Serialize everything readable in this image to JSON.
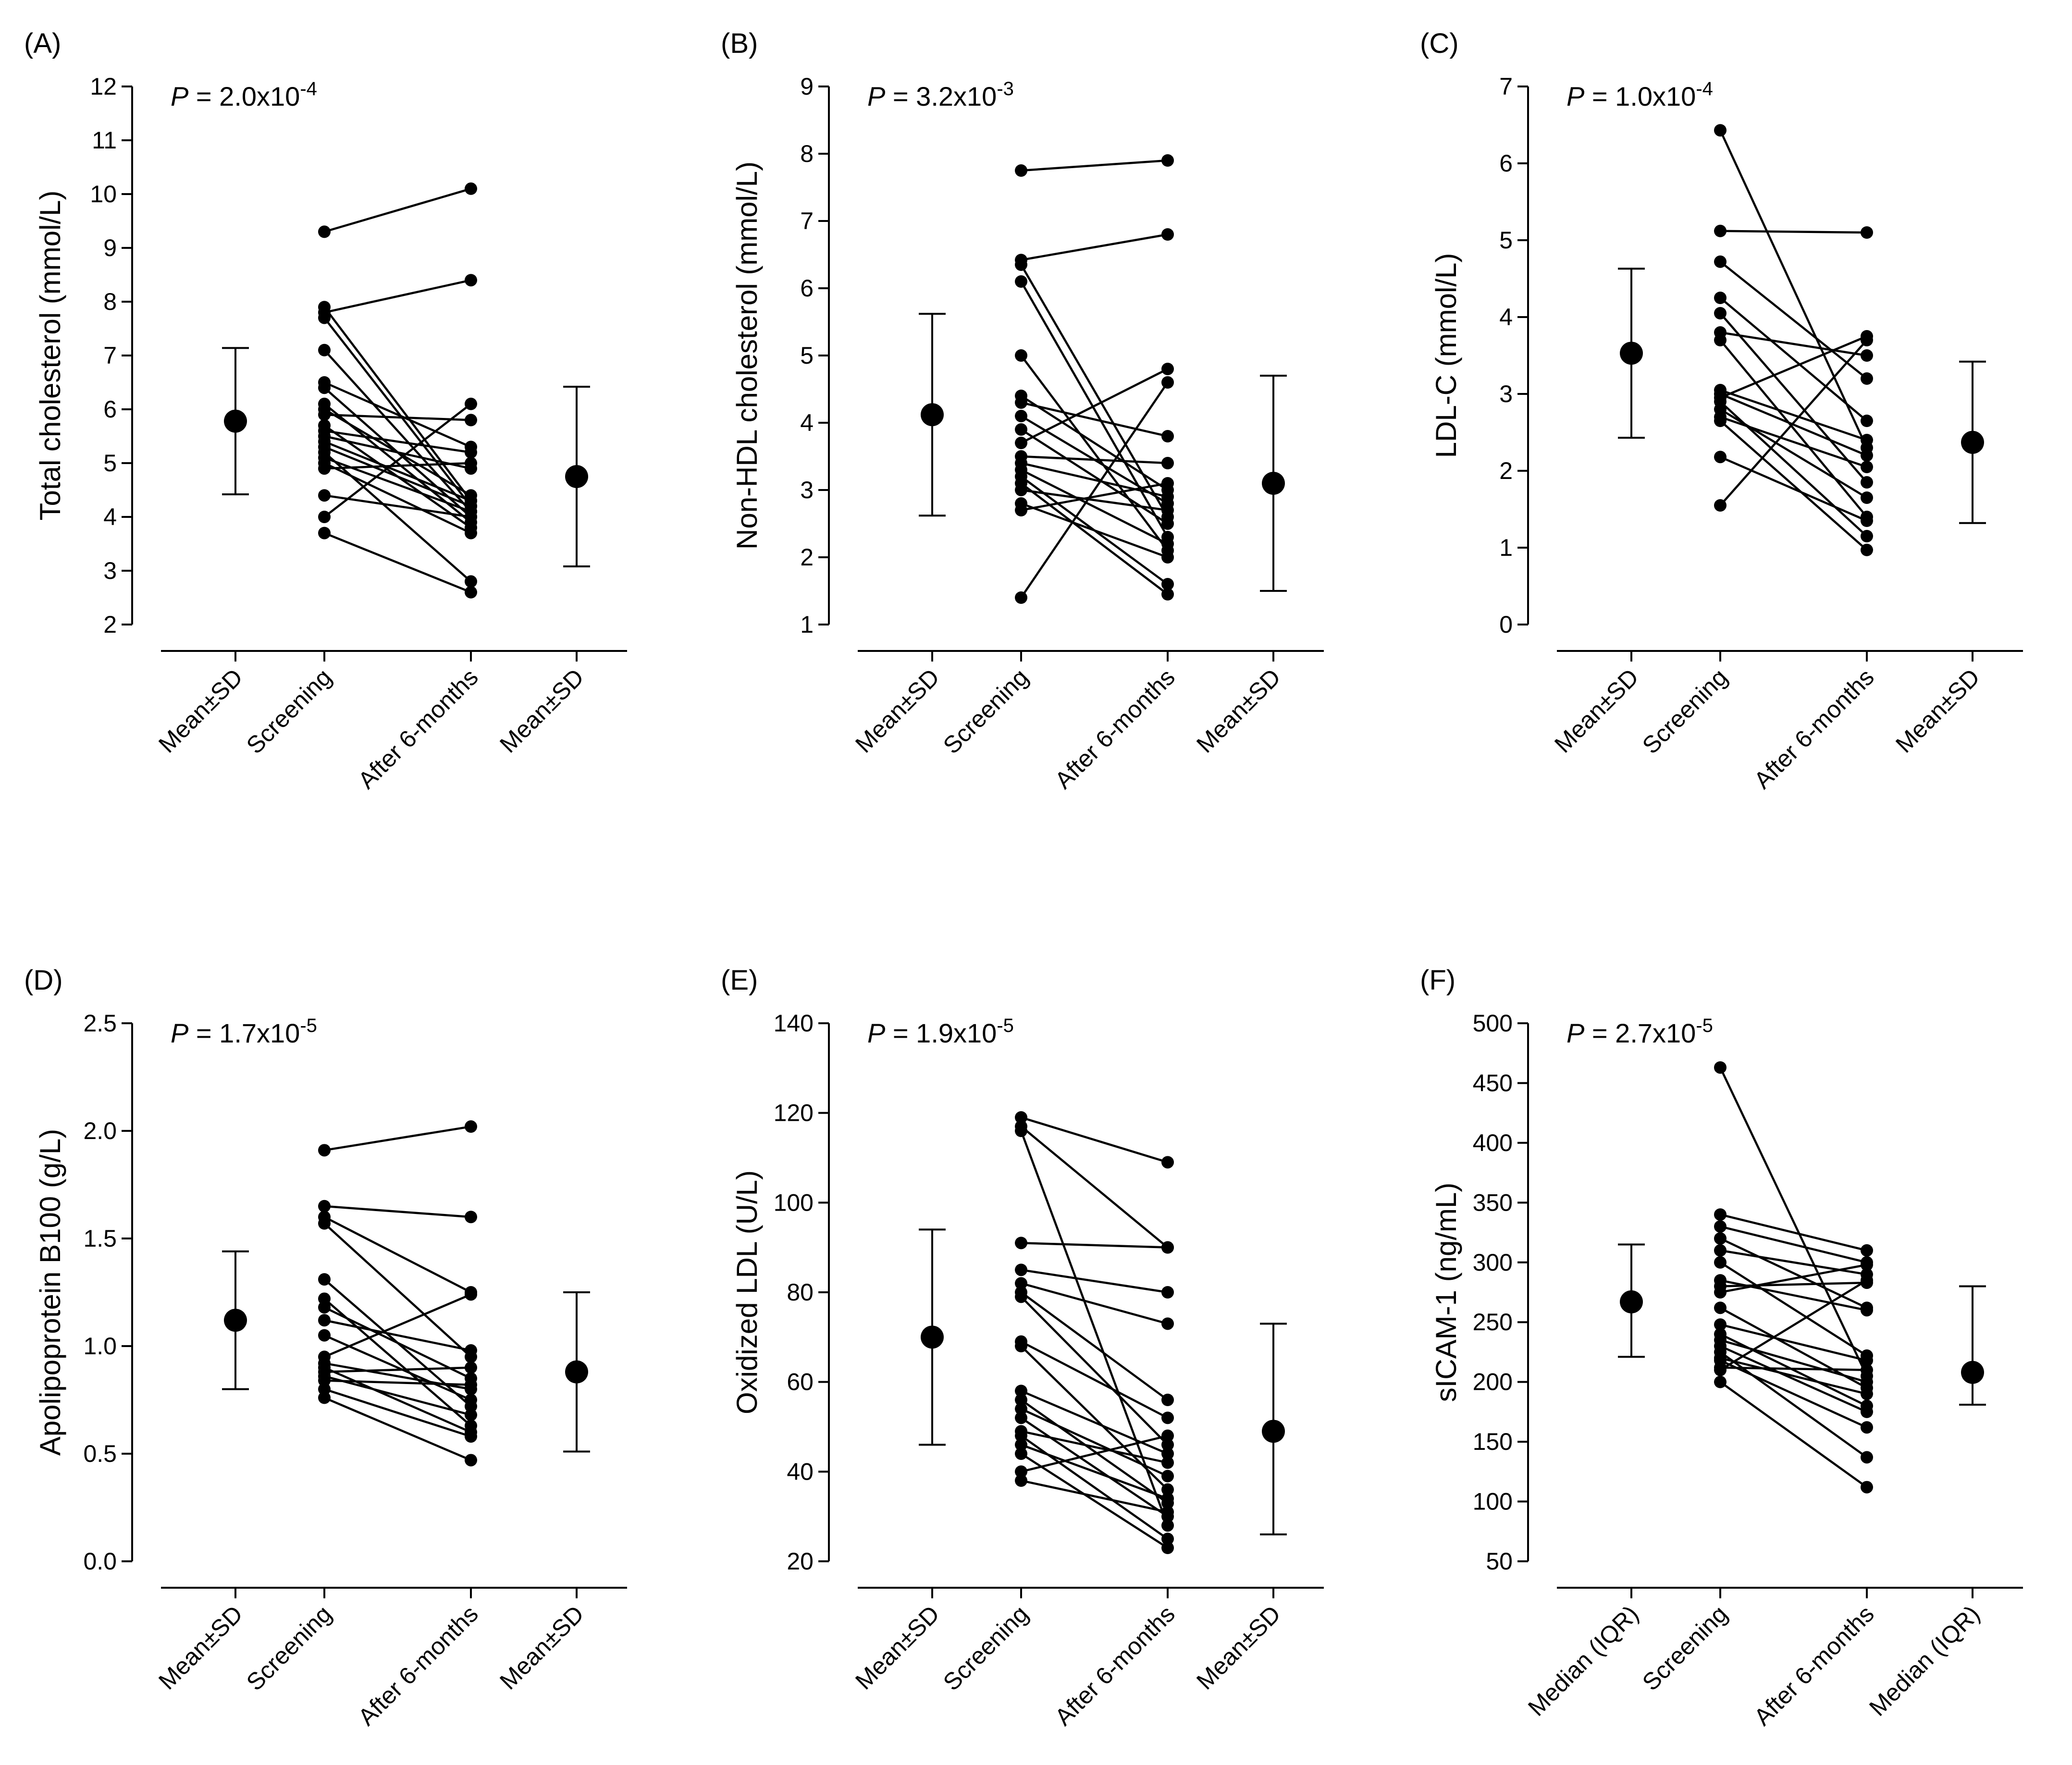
{
  "chart_data": [
    {
      "type": "line",
      "panel_label": "(A)",
      "p_prefix": "P",
      "p_text": " = 2.0x10",
      "p_exp": "-4",
      "ylabel": "Total cholesterol (mmol/L)",
      "ylim": [
        2,
        12
      ],
      "yticks": [
        2,
        3,
        4,
        5,
        6,
        7,
        8,
        9,
        10,
        11,
        12
      ],
      "categories": [
        "Mean±SD",
        "Screening",
        "After 6-months",
        "Mean±SD"
      ],
      "summary_before": {
        "center": 5.78,
        "low": 4.42,
        "high": 7.14
      },
      "summary_after": {
        "center": 4.75,
        "low": 3.08,
        "high": 6.42
      },
      "pairs": [
        [
          9.3,
          10.1
        ],
        [
          7.9,
          4.3
        ],
        [
          7.8,
          8.4
        ],
        [
          7.7,
          4.2
        ],
        [
          7.1,
          4.1
        ],
        [
          6.5,
          5.3
        ],
        [
          6.4,
          4.0
        ],
        [
          6.1,
          3.9
        ],
        [
          6.0,
          4.4
        ],
        [
          5.9,
          5.8
        ],
        [
          5.7,
          3.8
        ],
        [
          5.6,
          5.2
        ],
        [
          5.5,
          4.9
        ],
        [
          5.4,
          4.3
        ],
        [
          5.3,
          4.2
        ],
        [
          5.2,
          2.8
        ],
        [
          5.1,
          4.1
        ],
        [
          5.0,
          3.7
        ],
        [
          4.9,
          5.0
        ],
        [
          4.4,
          4.0
        ],
        [
          4.0,
          6.1
        ],
        [
          3.7,
          2.6
        ]
      ]
    },
    {
      "type": "line",
      "panel_label": "(B)",
      "p_prefix": "P",
      "p_text": " = 3.2x10",
      "p_exp": "-3",
      "ylabel": "Non-HDL cholesterol (mmol/L)",
      "ylim": [
        1,
        9
      ],
      "yticks": [
        1,
        2,
        3,
        4,
        5,
        6,
        7,
        8,
        9
      ],
      "categories": [
        "Mean±SD",
        "Screening",
        "After 6-months",
        "Mean±SD"
      ],
      "summary_before": {
        "center": 4.12,
        "low": 2.62,
        "high": 5.62
      },
      "summary_after": {
        "center": 3.1,
        "low": 1.5,
        "high": 4.7
      },
      "pairs": [
        [
          7.75,
          7.9
        ],
        [
          6.42,
          6.8
        ],
        [
          6.35,
          2.6
        ],
        [
          6.1,
          2.3
        ],
        [
          5.0,
          2.1
        ],
        [
          4.4,
          3.0
        ],
        [
          4.3,
          3.8
        ],
        [
          4.1,
          2.8
        ],
        [
          3.9,
          2.5
        ],
        [
          3.7,
          4.8
        ],
        [
          3.5,
          3.4
        ],
        [
          3.4,
          2.9
        ],
        [
          3.3,
          2.2
        ],
        [
          3.2,
          1.6
        ],
        [
          3.1,
          1.45
        ],
        [
          3.0,
          2.7
        ],
        [
          2.8,
          2.0
        ],
        [
          2.7,
          3.1
        ],
        [
          1.4,
          4.6
        ]
      ]
    },
    {
      "type": "line",
      "panel_label": "(C)",
      "p_prefix": "P",
      "p_text": " = 1.0x10",
      "p_exp": "-4",
      "ylabel": "LDL-C (mmol/L)",
      "ylim": [
        0,
        7
      ],
      "yticks": [
        0,
        1,
        2,
        3,
        4,
        5,
        6,
        7
      ],
      "categories": [
        "Mean±SD",
        "Screening",
        "After 6-months",
        "Mean±SD"
      ],
      "summary_before": {
        "center": 3.53,
        "low": 2.43,
        "high": 4.63
      },
      "summary_after": {
        "center": 2.37,
        "low": 1.32,
        "high": 3.42
      },
      "pairs": [
        [
          6.43,
          2.3
        ],
        [
          5.12,
          5.1
        ],
        [
          4.72,
          3.2
        ],
        [
          4.25,
          2.65
        ],
        [
          4.05,
          1.85
        ],
        [
          3.8,
          3.5
        ],
        [
          3.7,
          1.4
        ],
        [
          3.05,
          2.4
        ],
        [
          3.0,
          2.2
        ],
        [
          2.95,
          3.75
        ],
        [
          2.9,
          1.15
        ],
        [
          2.8,
          1.65
        ],
        [
          2.65,
          0.97
        ],
        [
          2.7,
          2.05
        ],
        [
          2.18,
          1.35
        ],
        [
          1.55,
          3.7
        ]
      ]
    },
    {
      "type": "line",
      "panel_label": "(D)",
      "p_prefix": "P",
      "p_text": " = 1.7x10",
      "p_exp": "-5",
      "ylabel": "Apolipoprotein B100 (g/L)",
      "ylim": [
        0.0,
        2.5
      ],
      "yticks": [
        0.0,
        0.5,
        1.0,
        1.5,
        2.0,
        2.5
      ],
      "categories": [
        "Mean±SD",
        "Screening",
        "After 6-months",
        "Mean±SD"
      ],
      "summary_before": {
        "center": 1.12,
        "low": 0.8,
        "high": 1.44
      },
      "summary_after": {
        "center": 0.88,
        "low": 0.51,
        "high": 1.25
      },
      "pairs": [
        [
          1.91,
          2.02
        ],
        [
          1.65,
          1.6
        ],
        [
          1.6,
          1.25
        ],
        [
          1.57,
          0.95
        ],
        [
          1.31,
          0.72
        ],
        [
          1.22,
          0.63
        ],
        [
          1.18,
          0.85
        ],
        [
          1.12,
          0.98
        ],
        [
          1.05,
          0.75
        ],
        [
          0.95,
          1.24
        ],
        [
          0.92,
          0.8
        ],
        [
          0.9,
          0.6
        ],
        [
          0.88,
          0.9
        ],
        [
          0.86,
          0.68
        ],
        [
          0.84,
          0.82
        ],
        [
          0.8,
          0.58
        ],
        [
          0.76,
          0.47
        ]
      ]
    },
    {
      "type": "line",
      "panel_label": "(E)",
      "p_prefix": "P",
      "p_text": " = 1.9x10",
      "p_exp": "-5",
      "ylabel": "Oxidized LDL (U/L)",
      "ylim": [
        20,
        140
      ],
      "yticks": [
        20,
        40,
        60,
        80,
        100,
        120,
        140
      ],
      "categories": [
        "Mean±SD",
        "Screening",
        "After 6-months",
        "Mean±SD"
      ],
      "summary_before": {
        "center": 70,
        "low": 46,
        "high": 94
      },
      "summary_after": {
        "center": 49,
        "low": 26,
        "high": 73
      },
      "pairs": [
        [
          119,
          109
        ],
        [
          117,
          90
        ],
        [
          116,
          28
        ],
        [
          91,
          90
        ],
        [
          85,
          80
        ],
        [
          82,
          73
        ],
        [
          80,
          56
        ],
        [
          79,
          46
        ],
        [
          69,
          52
        ],
        [
          68,
          36
        ],
        [
          58,
          44
        ],
        [
          56,
          33
        ],
        [
          54,
          39
        ],
        [
          52,
          30
        ],
        [
          49,
          42
        ],
        [
          48,
          25
        ],
        [
          46,
          34
        ],
        [
          44,
          23
        ],
        [
          40,
          48
        ],
        [
          38,
          31
        ]
      ]
    },
    {
      "type": "line",
      "panel_label": "(F)",
      "p_prefix": "P",
      "p_text": " = 2.7x10",
      "p_exp": "-5",
      "ylabel": "sICAM-1 (ng/mL)",
      "ylim": [
        50,
        500
      ],
      "yticks": [
        50,
        100,
        150,
        200,
        250,
        300,
        350,
        400,
        450,
        500
      ],
      "categories": [
        "Median (IQR)",
        "Screening",
        "After 6-months",
        "Median (IQR)"
      ],
      "summary_before": {
        "center": 267,
        "low": 221,
        "high": 315
      },
      "summary_after": {
        "center": 208,
        "low": 181,
        "high": 280
      },
      "pairs": [
        [
          463,
          205
        ],
        [
          340,
          310
        ],
        [
          330,
          300
        ],
        [
          320,
          262
        ],
        [
          310,
          290
        ],
        [
          300,
          222
        ],
        [
          285,
          260
        ],
        [
          280,
          283
        ],
        [
          275,
          298
        ],
        [
          262,
          195
        ],
        [
          248,
          218
        ],
        [
          240,
          180
        ],
        [
          235,
          200
        ],
        [
          230,
          175
        ],
        [
          225,
          137
        ],
        [
          220,
          190
        ],
        [
          218,
          162
        ],
        [
          212,
          210
        ],
        [
          210,
          285
        ],
        [
          200,
          112
        ]
      ]
    }
  ]
}
